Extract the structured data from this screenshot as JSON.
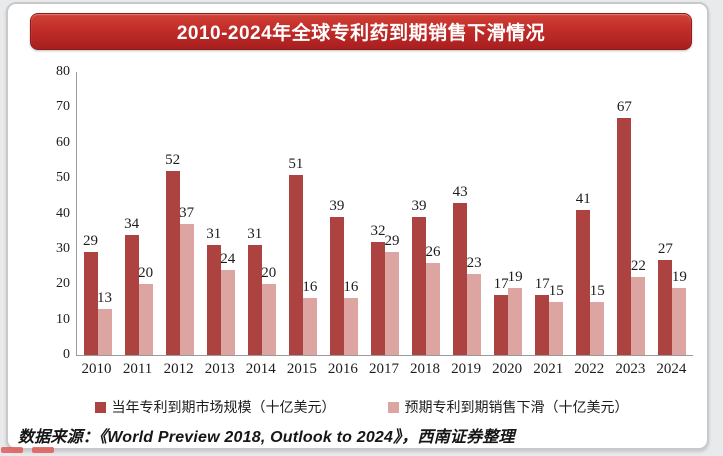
{
  "title": "2010-2024年全球专利药到期销售下滑情况",
  "chart_data": {
    "type": "bar",
    "title": "2010-2024年全球专利药到期销售下滑情况",
    "categories": [
      "2010",
      "2011",
      "2012",
      "2013",
      "2014",
      "2015",
      "2016",
      "2017",
      "2018",
      "2019",
      "2020",
      "2021",
      "2022",
      "2023",
      "2024"
    ],
    "series": [
      {
        "name": "当年专利到期市场规模（十亿美元）",
        "color": "#AC4340",
        "values": [
          29,
          34,
          52,
          31,
          31,
          51,
          39,
          32,
          39,
          43,
          17,
          17,
          41,
          67,
          27
        ]
      },
      {
        "name": "预期专利到期销售下滑（十亿美元）",
        "color": "#DCA5A2",
        "values": [
          13,
          20,
          37,
          24,
          20,
          16,
          16,
          29,
          26,
          23,
          19,
          15,
          15,
          22,
          19
        ]
      }
    ],
    "xlabel": "",
    "ylabel": "",
    "ylim": [
      0,
      80
    ],
    "yticks": [
      0,
      10,
      20,
      30,
      40,
      50,
      60,
      70,
      80
    ],
    "grid": false,
    "legend_position": "bottom",
    "value_labels": true
  },
  "footer": {
    "prefix": "数据来源：",
    "source": "《World Preview 2018, Outlook to 2024》，西南证券整理"
  },
  "colors": {
    "banner": "#B7282A",
    "banner_border": "#8F1A18",
    "series1": "#AC4340",
    "series2": "#DCA5A2",
    "axis": "#9A9A9A",
    "text": "#1D1D1D",
    "card_border": "#C9C9C9",
    "background": "#E9EAEC"
  }
}
